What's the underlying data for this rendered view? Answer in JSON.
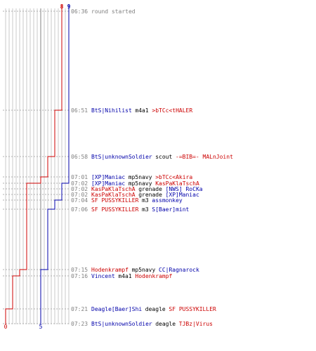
{
  "colors": {
    "blue": "#0000aa",
    "red": "#cc0000",
    "time": "#808080",
    "grid": "#c8c8c8",
    "divider": "#808080",
    "weapon": "#000000"
  },
  "chart_data": {
    "type": "line",
    "title": "",
    "xlabel": "",
    "ylabel": "",
    "xlim": [
      0,
      9
    ],
    "grid": true,
    "series": [
      {
        "color": "#0000aa",
        "start_value": 9,
        "end_value": 5,
        "points": [
          {
            "time": "06:36",
            "value": 9
          },
          {
            "time": "07:01",
            "value": 9
          },
          {
            "time": "07:02",
            "value": 8
          },
          {
            "time": "07:04",
            "value": 7
          },
          {
            "time": "07:06",
            "value": 6
          },
          {
            "time": "07:15",
            "value": 5
          },
          {
            "time": "07:21",
            "value": 5
          },
          {
            "time": "07:23",
            "value": 5
          }
        ]
      },
      {
        "color": "#cc0000",
        "start_value": 8,
        "end_value": 0,
        "points": [
          {
            "time": "06:36",
            "value": 8
          },
          {
            "time": "06:51",
            "value": 7
          },
          {
            "time": "06:58",
            "value": 6
          },
          {
            "time": "07:01",
            "value": 5
          },
          {
            "time": "07:02",
            "value": 4
          },
          {
            "time": "07:02",
            "value": 3
          },
          {
            "time": "07:15",
            "value": 2
          },
          {
            "time": "07:16",
            "value": 1
          },
          {
            "time": "07:21",
            "value": 0
          },
          {
            "time": "07:23",
            "value": 0
          }
        ]
      }
    ],
    "events": [
      {
        "time": "06:36",
        "note": "round started"
      },
      {
        "time": "06:51",
        "killer": "BtS|Nihilist",
        "killer_team": "blue",
        "weapon": "m4a1",
        "victim": ">bTCc<tHALER",
        "victim_team": "red"
      },
      {
        "time": "06:58",
        "killer": "BtS|unknownSoldier",
        "killer_team": "blue",
        "weapon": "scout",
        "victim": "-=BIB=- MALnJoint",
        "victim_team": "red"
      },
      {
        "time": "07:01",
        "killer": "[XP]Maniac",
        "killer_team": "blue",
        "weapon": "mp5navy",
        "victim": ">bTCc<Akira",
        "victim_team": "red"
      },
      {
        "time": "07:02",
        "killer": "[XP]Maniac",
        "killer_team": "blue",
        "weapon": "mp5navy",
        "victim": "KasPaKlaTschA",
        "victim_team": "red"
      },
      {
        "time": "07:02",
        "killer": "KasPaKlaTschA",
        "killer_team": "red",
        "weapon": "grenade",
        "victim": "[NWS] RoCKa",
        "victim_team": "blue"
      },
      {
        "time": "07:02",
        "killer": "KasPaKlaTschA",
        "killer_team": "red",
        "weapon": "grenade",
        "victim": "[XP]Maniac",
        "victim_team": "blue"
      },
      {
        "time": "07:04",
        "killer": "SF PUSSYKILLER",
        "killer_team": "red",
        "weapon": "m3",
        "victim": "assmonkey",
        "victim_team": "blue"
      },
      {
        "time": "07:06",
        "killer": "SF PUSSYKILLER",
        "killer_team": "red",
        "weapon": "m3",
        "victim": "S[Baer]mint",
        "victim_team": "blue"
      },
      {
        "time": "07:15",
        "killer": "Hodenkrampf",
        "killer_team": "red",
        "weapon": "mp5navy",
        "victim": "CC|Ragnarock",
        "victim_team": "blue"
      },
      {
        "time": "07:16",
        "killer": "Vincent",
        "killer_team": "blue",
        "weapon": "m4a1",
        "victim": "Hodenkrampf",
        "victim_team": "red"
      },
      {
        "time": "07:21",
        "killer": "Deagle[Baer]Shi",
        "killer_team": "blue",
        "weapon": "deagle",
        "victim": "SF PUSSYKILLER",
        "victim_team": "red"
      },
      {
        "time": "07:23",
        "killer": "BtS|unknownSoldier",
        "killer_team": "blue",
        "weapon": "deagle",
        "victim": "TJBz|Virus",
        "victim_team": "red"
      }
    ]
  }
}
